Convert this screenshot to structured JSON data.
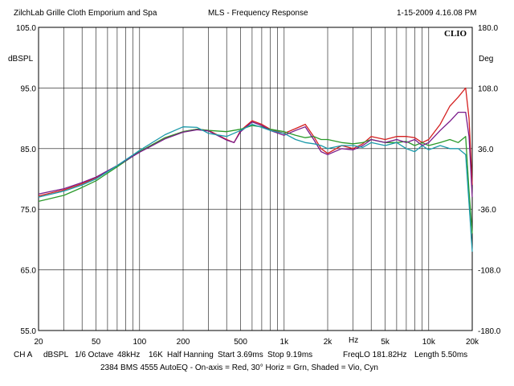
{
  "header": {
    "left": "ZilchLab Grille Cloth Emporium and Spa",
    "center": "MLS - Frequency Response",
    "right": "1-15-2009 4.16.08 PM"
  },
  "logo": "CLIO",
  "footer": {
    "channel": "CH A",
    "units": "dBSPL",
    "smoothing": "1/6 Octave",
    "rate": "48kHz",
    "size": "16K",
    "window": "Half Hanning",
    "start": "Start 3.69ms",
    "stop": "Stop 9.19ms",
    "freqlo": "FreqLO 181.82Hz",
    "length": "Length 5.50ms",
    "caption": "2384 BMS 4555 AutoEQ - On-axis = Red, 30° Horiz = Grn, Shaded = Vio, Cyn"
  },
  "chart_data": {
    "type": "line",
    "xscale": "log",
    "xlim": [
      20,
      20000
    ],
    "ylim": [
      55,
      105
    ],
    "y2lim": [
      -180,
      180
    ],
    "ylabel": "dBSPL",
    "y2label": "Deg",
    "xlabel": "Hz",
    "grid": true,
    "x_ticks": [
      {
        "value": 20,
        "label": "20"
      },
      {
        "value": 50,
        "label": "50"
      },
      {
        "value": 100,
        "label": "100"
      },
      {
        "value": 200,
        "label": "200"
      },
      {
        "value": 500,
        "label": "500"
      },
      {
        "value": 1000,
        "label": "1k"
      },
      {
        "value": 2000,
        "label": "2k"
      },
      {
        "value": 5000,
        "label": "5k"
      },
      {
        "value": 10000,
        "label": "10k"
      },
      {
        "value": 20000,
        "label": "20k"
      }
    ],
    "y_ticks": [
      {
        "value": 105,
        "label": "105.0"
      },
      {
        "value": 95,
        "label": "95.0"
      },
      {
        "value": 85,
        "label": "85.0"
      },
      {
        "value": 75,
        "label": "75.0"
      },
      {
        "value": 65,
        "label": "65.0"
      },
      {
        "value": 55,
        "label": "55.0"
      }
    ],
    "y2_ticks": [
      {
        "value": 180,
        "label": "180.0"
      },
      {
        "value": 108,
        "label": "108.0"
      },
      {
        "value": 36,
        "label": "36.0"
      },
      {
        "value": -36,
        "label": "-36.0"
      },
      {
        "value": -108,
        "label": "-108.0"
      },
      {
        "value": -180,
        "label": "-180.0"
      }
    ],
    "series": [
      {
        "color": "#d42020",
        "x": [
          20,
          30,
          40,
          50,
          70,
          100,
          150,
          200,
          250,
          300,
          400,
          450,
          500,
          600,
          700,
          800,
          1000,
          1200,
          1400,
          1600,
          1800,
          2000,
          2500,
          3000,
          3500,
          4000,
          5000,
          6000,
          7000,
          8000,
          9000,
          10000,
          12000,
          14000,
          16000,
          18000,
          19000,
          20000
        ],
        "y": [
          77.2,
          78.2,
          79.2,
          80.2,
          82.2,
          84.5,
          86.8,
          87.8,
          88.2,
          88.0,
          86.5,
          86.0,
          88.0,
          89.6,
          89.0,
          88.2,
          87.5,
          88.3,
          89.0,
          87.0,
          85.0,
          84.2,
          85.5,
          85.0,
          85.8,
          87.0,
          86.5,
          87.0,
          87.0,
          86.8,
          86.0,
          86.5,
          89.0,
          92.0,
          93.5,
          95.0,
          90.0,
          79.0
        ]
      },
      {
        "color": "#2a9a2a",
        "x": [
          20,
          30,
          40,
          50,
          70,
          100,
          150,
          200,
          250,
          300,
          400,
          500,
          600,
          700,
          800,
          1000,
          1200,
          1400,
          1600,
          1800,
          2000,
          2500,
          3000,
          3500,
          4000,
          5000,
          6000,
          7000,
          8000,
          9000,
          10000,
          12000,
          14000,
          16000,
          18000,
          19000,
          20000
        ],
        "y": [
          76.3,
          77.3,
          78.6,
          79.7,
          82.0,
          84.5,
          86.8,
          87.8,
          88.2,
          88.0,
          87.8,
          88.2,
          88.8,
          88.6,
          88.2,
          87.8,
          87.2,
          86.8,
          87.0,
          86.5,
          86.5,
          86.0,
          85.8,
          86.0,
          86.5,
          86.0,
          86.0,
          86.2,
          85.5,
          86.0,
          85.5,
          86.0,
          86.5,
          86.0,
          87.0,
          78.0,
          71.0
        ]
      },
      {
        "color": "#7a1a8a",
        "x": [
          20,
          30,
          40,
          50,
          70,
          100,
          150,
          200,
          250,
          300,
          400,
          450,
          500,
          600,
          700,
          800,
          1000,
          1200,
          1400,
          1600,
          1800,
          2000,
          2500,
          3000,
          3500,
          4000,
          5000,
          6000,
          7000,
          8000,
          9000,
          10000,
          12000,
          14000,
          16000,
          18000,
          19000,
          20000
        ],
        "y": [
          77.5,
          78.4,
          79.4,
          80.3,
          82.2,
          84.4,
          86.6,
          87.7,
          88.1,
          87.9,
          86.4,
          86.0,
          87.8,
          89.4,
          88.8,
          88.0,
          87.2,
          88.0,
          88.6,
          86.5,
          84.5,
          84.0,
          85.0,
          84.8,
          85.5,
          86.5,
          86.0,
          86.5,
          86.0,
          86.5,
          85.5,
          86.0,
          88.0,
          89.5,
          91.0,
          91.0,
          87.0,
          77.0
        ]
      },
      {
        "color": "#1a9aaa",
        "x": [
          20,
          30,
          40,
          50,
          70,
          100,
          150,
          200,
          250,
          300,
          400,
          500,
          600,
          700,
          800,
          1000,
          1200,
          1400,
          1600,
          1800,
          2000,
          2500,
          3000,
          3500,
          4000,
          5000,
          6000,
          7000,
          8000,
          9000,
          10000,
          12000,
          14000,
          16000,
          18000,
          19000,
          20000
        ],
        "y": [
          77.0,
          78.0,
          79.0,
          80.0,
          82.2,
          84.7,
          87.3,
          88.6,
          88.5,
          87.5,
          87.0,
          88.0,
          89.0,
          88.5,
          88.0,
          87.5,
          86.5,
          86.0,
          85.8,
          85.5,
          85.0,
          85.5,
          85.5,
          85.2,
          86.0,
          85.5,
          86.0,
          85.0,
          84.5,
          85.5,
          84.8,
          85.5,
          85.0,
          85.0,
          84.0,
          76.0,
          68.0
        ]
      }
    ]
  }
}
